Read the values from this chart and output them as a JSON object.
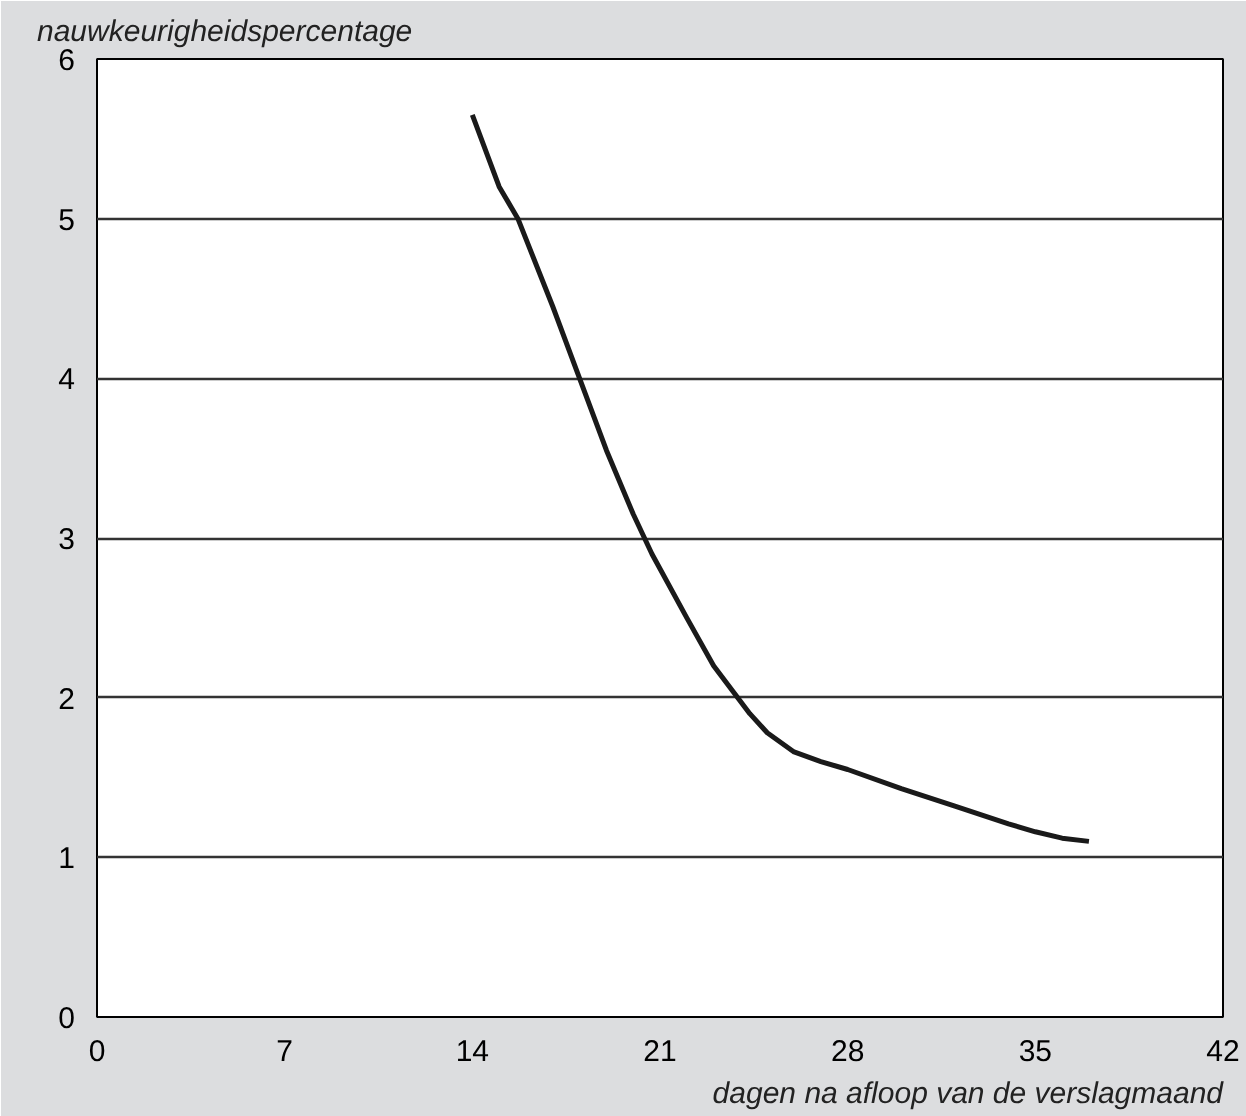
{
  "chart_data": {
    "type": "line",
    "ylabel": "nauwkeurigheidspercentage",
    "xlabel": "dagen na afloop van de verslagmaand",
    "x": [
      14,
      15,
      15.7,
      17,
      18,
      19,
      20,
      20.7,
      22,
      23,
      24.35,
      25,
      26,
      27,
      28,
      30,
      32,
      34,
      35,
      36,
      37
    ],
    "series": [
      {
        "color": "#1a1a1a",
        "values": [
          5.65,
          5.2,
          5.0,
          4.45,
          4.0,
          3.55,
          3.15,
          2.9,
          2.5,
          2.2,
          1.9,
          1.78,
          1.66,
          1.6,
          1.55,
          1.43,
          1.32,
          1.21,
          1.16,
          1.12,
          1.1
        ]
      }
    ],
    "xlim": [
      0,
      42
    ],
    "xticks": [
      0,
      7,
      14,
      21,
      28,
      35,
      42
    ],
    "ylim": [
      0,
      6
    ],
    "yticks": [
      0,
      1,
      2,
      3,
      4,
      5,
      6
    ],
    "grid": "y",
    "marker": "none",
    "line_style": "solid"
  }
}
